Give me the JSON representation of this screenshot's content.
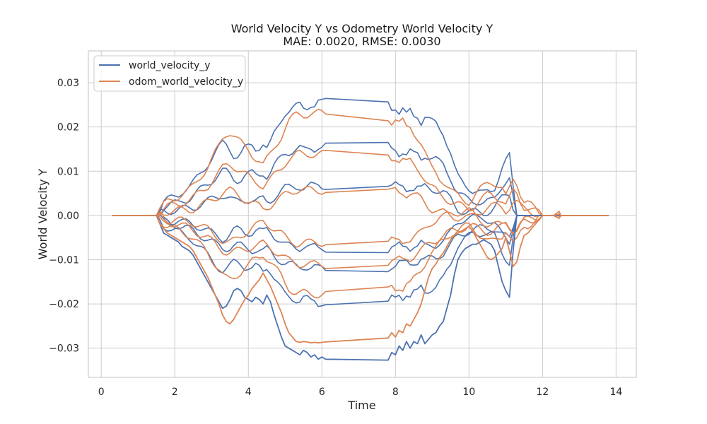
{
  "chart_data": {
    "type": "line",
    "title": "World Velocity Y vs Odometry World Velocity Y",
    "subtitle": "MAE: 0.0020, RMSE: 0.0030",
    "xlabel": "Time",
    "ylabel": "World Velocity Y",
    "xlim": [
      -0.35,
      14.55
    ],
    "ylim": [
      -0.0366,
      0.0372
    ],
    "xticks": [
      0,
      2,
      4,
      6,
      8,
      10,
      12,
      14
    ],
    "xtick_labels": [
      "0",
      "2",
      "4",
      "6",
      "8",
      "10",
      "12",
      "14"
    ],
    "yticks": [
      -0.03,
      -0.02,
      -0.01,
      0.0,
      0.01,
      0.02,
      0.03
    ],
    "ytick_labels": [
      "−0.03",
      "−0.02",
      "−0.01",
      "0.00",
      "0.01",
      "0.02",
      "0.03"
    ],
    "grid": true,
    "legend_position": "top-left",
    "colors": {
      "world_velocity_y": "#4c72b0",
      "odom_world_velocity_y": "#dd8452",
      "grid": "#cccccc",
      "spine": "#cccccc"
    },
    "series": [
      {
        "name": "world_velocity_y",
        "color": "#4c72b0",
        "x": [
          0.3,
          1.5,
          1.6,
          1.7,
          1.8,
          1.9,
          2.0,
          2.1,
          2.2,
          2.3,
          2.4,
          2.5,
          2.6,
          2.7,
          2.8,
          2.9,
          3.0,
          3.1,
          3.2,
          3.3,
          3.4,
          3.5,
          3.6,
          3.7,
          3.8,
          3.9,
          4.0,
          4.1,
          4.2,
          4.3,
          4.4,
          4.5,
          4.6,
          4.7,
          4.8,
          4.9,
          5.0,
          5.1,
          5.2,
          5.3,
          5.4,
          5.5,
          5.6,
          5.7,
          5.8,
          5.9,
          6.0,
          6.1,
          7.8,
          7.9,
          8.0,
          8.1,
          8.2,
          8.3,
          8.4,
          8.5,
          8.6,
          8.7,
          8.8,
          8.9,
          9.0,
          9.1,
          9.2,
          9.3,
          9.4,
          9.5,
          9.6,
          9.7,
          9.8,
          9.9,
          10.0,
          10.1,
          10.2,
          10.3,
          10.4,
          10.5,
          10.6,
          10.7,
          10.8,
          10.9,
          11.0,
          11.1,
          11.2,
          11.3,
          11.4,
          11.5,
          11.6,
          11.7,
          11.8,
          11.9,
          12.0,
          12.1,
          12.3,
          13.0,
          13.8
        ],
        "y": [
          0.0,
          0.0,
          -0.002,
          -0.004,
          -0.0045,
          -0.005,
          -0.0055,
          -0.006,
          -0.007,
          -0.0075,
          -0.008,
          -0.009,
          -0.0105,
          -0.012,
          -0.0135,
          -0.015,
          -0.0165,
          -0.018,
          -0.0195,
          -0.021,
          -0.0205,
          -0.019,
          -0.017,
          -0.0165,
          -0.017,
          -0.0185,
          -0.019,
          -0.0195,
          -0.0185,
          -0.019,
          -0.02,
          -0.018,
          -0.0195,
          -0.0225,
          -0.025,
          -0.0275,
          -0.0295,
          -0.03,
          -0.0305,
          -0.031,
          -0.0315,
          -0.0305,
          -0.031,
          -0.032,
          -0.0315,
          -0.0325,
          -0.032,
          -0.0325,
          -0.0327,
          -0.031,
          -0.0315,
          -0.0295,
          -0.0305,
          -0.0285,
          -0.03,
          -0.0285,
          -0.029,
          -0.027,
          -0.029,
          -0.028,
          -0.027,
          -0.0265,
          -0.025,
          -0.024,
          -0.021,
          -0.018,
          -0.0135,
          -0.01,
          -0.0085,
          -0.0075,
          -0.007,
          -0.0065,
          -0.0065,
          -0.006,
          -0.0055,
          -0.006,
          -0.0065,
          -0.008,
          -0.0115,
          -0.015,
          -0.017,
          -0.0185,
          -0.008,
          0.0,
          0.0,
          0.0,
          0.0,
          0.0,
          0.0,
          0.0,
          0.0,
          0.0,
          0.0,
          0.0,
          0.0
        ]
      },
      {
        "name": "odom_world_velocity_y",
        "color": "#dd8452",
        "x": [
          0.3,
          1.5,
          1.6,
          1.7,
          1.8,
          1.9,
          2.0,
          2.1,
          2.2,
          2.3,
          2.4,
          2.5,
          2.6,
          2.7,
          2.8,
          2.9,
          3.0,
          3.1,
          3.2,
          3.3,
          3.4,
          3.5,
          3.6,
          3.7,
          3.8,
          3.9,
          4.0,
          4.1,
          4.2,
          4.3,
          4.4,
          4.5,
          4.6,
          4.7,
          4.8,
          4.9,
          5.0,
          5.1,
          5.2,
          5.3,
          5.4,
          5.5,
          5.6,
          5.7,
          5.8,
          5.9,
          6.0,
          6.1,
          7.8,
          7.9,
          8.0,
          8.1,
          8.2,
          8.3,
          8.4,
          8.5,
          8.6,
          8.7,
          8.8,
          8.9,
          9.0,
          9.1,
          9.2,
          9.3,
          9.4,
          9.5,
          9.6,
          9.7,
          9.8,
          9.9,
          10.0,
          10.1,
          10.2,
          10.3,
          10.4,
          10.5,
          10.6,
          10.7,
          10.8,
          10.9,
          11.0,
          11.1,
          11.2,
          11.3,
          11.4,
          11.5,
          11.6,
          11.7,
          11.8,
          11.9,
          12.0,
          12.1,
          12.3,
          12.45,
          12.5,
          13.0,
          13.8
        ],
        "y": [
          0.0,
          0.0,
          -0.002,
          -0.003,
          -0.004,
          -0.0045,
          -0.005,
          -0.0055,
          -0.006,
          -0.0065,
          -0.007,
          -0.008,
          -0.0095,
          -0.011,
          -0.0125,
          -0.014,
          -0.016,
          -0.018,
          -0.02,
          -0.0225,
          -0.024,
          -0.0245,
          -0.0235,
          -0.022,
          -0.0205,
          -0.019,
          -0.018,
          -0.0165,
          -0.0155,
          -0.0145,
          -0.013,
          -0.0145,
          -0.016,
          -0.018,
          -0.02,
          -0.022,
          -0.0245,
          -0.0265,
          -0.0275,
          -0.0285,
          -0.0287,
          -0.0285,
          -0.0286,
          -0.0288,
          -0.0287,
          -0.0288,
          -0.0287,
          -0.0286,
          -0.0277,
          -0.0265,
          -0.0275,
          -0.026,
          -0.0265,
          -0.0245,
          -0.025,
          -0.0235,
          -0.022,
          -0.02,
          -0.017,
          -0.014,
          -0.012,
          -0.011,
          -0.0095,
          -0.0085,
          -0.007,
          -0.0055,
          -0.0045,
          -0.004,
          -0.0035,
          -0.003,
          -0.0025,
          -0.0035,
          -0.005,
          -0.0065,
          -0.008,
          -0.0095,
          -0.01,
          -0.0095,
          -0.0085,
          -0.0075,
          -0.005,
          -0.008,
          -0.0115,
          -0.0105,
          -0.007,
          -0.0045,
          -0.004,
          -0.003,
          -0.002,
          -0.001,
          0.0,
          0.0,
          0.0,
          0.0003,
          0.0,
          0.0,
          0.0
        ]
      }
    ]
  }
}
